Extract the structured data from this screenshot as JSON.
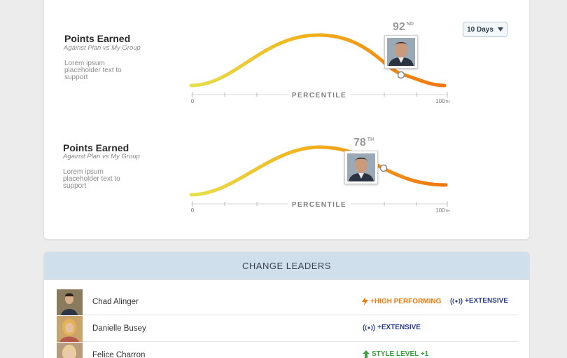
{
  "performance": {
    "period_selector": {
      "label": "10 Days"
    },
    "sections": [
      {
        "title": "Points Earned",
        "subtitle": "Against Plan vs My Group",
        "description": "Lorem ipsum placeholder text to support",
        "percentile_value": 92,
        "percentile_suffix": "ND",
        "axis": {
          "label": "PERCENTILE",
          "min_label": "0",
          "max_label": "100",
          "max_suffix": "TH"
        }
      },
      {
        "title": "Points Earned",
        "subtitle": "Against Plan vs My Group",
        "description": "Lorem ipsum placeholder text to support",
        "percentile_value": 78,
        "percentile_suffix": "TH",
        "axis": {
          "label": "PERCENTILE",
          "min_label": "0",
          "max_label": "100",
          "max_suffix": "TH"
        }
      }
    ]
  },
  "leaders": {
    "header": "CHANGE LEADERS",
    "rows": [
      {
        "name": "Chad Alinger",
        "badges": [
          {
            "icon": "lightning-icon",
            "text": "+HIGH PERFORMING",
            "color": "#f07a0e"
          },
          {
            "icon": "broadcast-icon",
            "text": "+EXTENSIVE",
            "color": "#2a3e8e"
          }
        ]
      },
      {
        "name": "Danielle Busey",
        "badges": [
          {
            "icon": "broadcast-icon",
            "text": "+EXTENSIVE",
            "color": "#2a3e8e"
          }
        ]
      },
      {
        "name": "Felice Charron",
        "badges": [
          {
            "icon": "arrow-up-icon",
            "text": "STYLE LEVEL +1",
            "color": "#3aa040"
          }
        ]
      }
    ]
  },
  "colors": {
    "curve_start": "#e4dc4a",
    "curve_end": "#f07a10",
    "header_bg": "#cfe0ec",
    "page_bg": "#ececec"
  }
}
